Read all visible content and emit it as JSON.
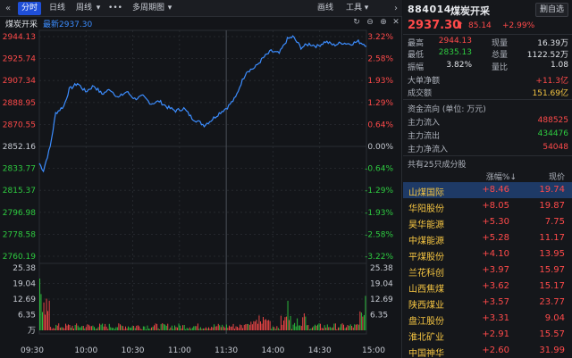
{
  "toolbar": {
    "collapse_icon": "«",
    "tabs": [
      "分时",
      "日线",
      "周线",
      "•••",
      "多周期图"
    ],
    "period_dropdown_arrow": "▾",
    "draw_label": "画线",
    "tools_label": "工具",
    "tools_arrow": "▾",
    "expand_icon": "›",
    "icons": [
      "↻",
      "⊖",
      "⊕",
      "✕"
    ]
  },
  "infobar": {
    "name": "煤炭开采",
    "latest_label": "最新2937.30"
  },
  "chart": {
    "price_ticks": [
      "2944.13",
      "2925.74",
      "2907.34",
      "2888.95",
      "2870.55",
      "2852.16",
      "2833.77",
      "2815.37",
      "2796.98",
      "2778.58",
      "2760.19"
    ],
    "pct_ticks": [
      "3.22%",
      "2.58%",
      "1.93%",
      "1.29%",
      "0.64%",
      "0.00%",
      "-0.64%",
      "-1.29%",
      "-1.93%",
      "-2.58%",
      "-3.22%"
    ],
    "vol_ticks": [
      "25.38",
      "19.04",
      "12.69",
      "6.35",
      "万"
    ],
    "time_ticks": [
      "09:30",
      "10:00",
      "10:30",
      "11:00",
      "11:30",
      "14:00",
      "14:30",
      "15:00"
    ],
    "colors": {
      "price_line": "#3c8dff",
      "up": "#ff4a4a",
      "down": "#2ecc40",
      "grid": "#2a2d33",
      "neutral": "#c8ccd4"
    },
    "prev_close": 2852.16,
    "price_min": 2760.19,
    "price_max": 2944.13,
    "vol_max": 25.38
  },
  "quote": {
    "code": "884014",
    "name": "煤炭开采",
    "delete_button": "删自选",
    "price": "2937.30",
    "arrow": "⬆",
    "change": "85.14",
    "change_pct": "+2.99%",
    "rows": [
      {
        "l1": "最高",
        "v1": "2944.13",
        "l2": "现量",
        "v2": "16.39万"
      },
      {
        "l1": "最低",
        "v1": "2835.13",
        "l2": "总量",
        "v2": "1122.52万"
      },
      {
        "l1": "振幅",
        "v1": "3.82%",
        "l2": "量比",
        "v2": "1.08"
      }
    ],
    "big_order_label": "大单净额",
    "big_order_value": "+11.3亿",
    "turnover_label": "成交额",
    "turnover_value": "151.69亿",
    "flow_title": "资金流向 (单位: 万元)",
    "flows": [
      {
        "label": "主力流入",
        "value": "488525"
      },
      {
        "label": "主力流出",
        "value": "434476"
      },
      {
        "label": "主力净流入",
        "value": "54048"
      }
    ],
    "member_title": "共有25只成分股",
    "table_head": {
      "name": "",
      "pct": "涨幅%↓",
      "price": "现价"
    },
    "members": [
      {
        "name": "山煤国际",
        "pct": "+8.46",
        "price": "19.74"
      },
      {
        "name": "华阳股份",
        "pct": "+8.05",
        "price": "19.87"
      },
      {
        "name": "昊华能源",
        "pct": "+5.30",
        "price": "7.75"
      },
      {
        "name": "中煤能源",
        "pct": "+5.28",
        "price": "11.17"
      },
      {
        "name": "平煤股份",
        "pct": "+4.10",
        "price": "13.95"
      },
      {
        "name": "兰花科创",
        "pct": "+3.97",
        "price": "15.97"
      },
      {
        "name": "山西焦煤",
        "pct": "+3.62",
        "price": "15.17"
      },
      {
        "name": "陕西煤业",
        "pct": "+3.57",
        "price": "23.77"
      },
      {
        "name": "盘江股份",
        "pct": "+3.31",
        "price": "9.04"
      },
      {
        "name": "淮北矿业",
        "pct": "+2.91",
        "price": "15.57"
      },
      {
        "name": "中国神华",
        "pct": "+2.60",
        "price": "31.99"
      }
    ]
  }
}
